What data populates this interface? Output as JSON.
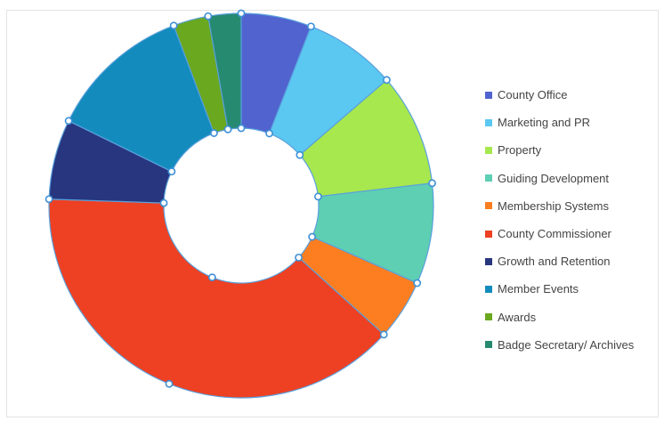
{
  "chart_data": {
    "type": "pie",
    "title": "",
    "donut": true,
    "legend_position": "right",
    "categories": [
      "County Office",
      "Marketing and PR",
      "Property",
      "Guiding Development",
      "Membership Systems",
      "County Commissioner",
      "Growth and Retention",
      "Member Events",
      "Awards",
      "Badge Secretary/ Archives"
    ],
    "values": [
      5.8,
      7.6,
      9.3,
      8.3,
      5.0,
      38.1,
      6.6,
      11.8,
      2.9,
      2.7
    ],
    "colors": [
      "#5063cf",
      "#5bc8f2",
      "#a6e84e",
      "#5ecfb3",
      "#fc7e21",
      "#ee4023",
      "#27367f",
      "#138cbd",
      "#6aa820",
      "#268a71"
    ]
  }
}
